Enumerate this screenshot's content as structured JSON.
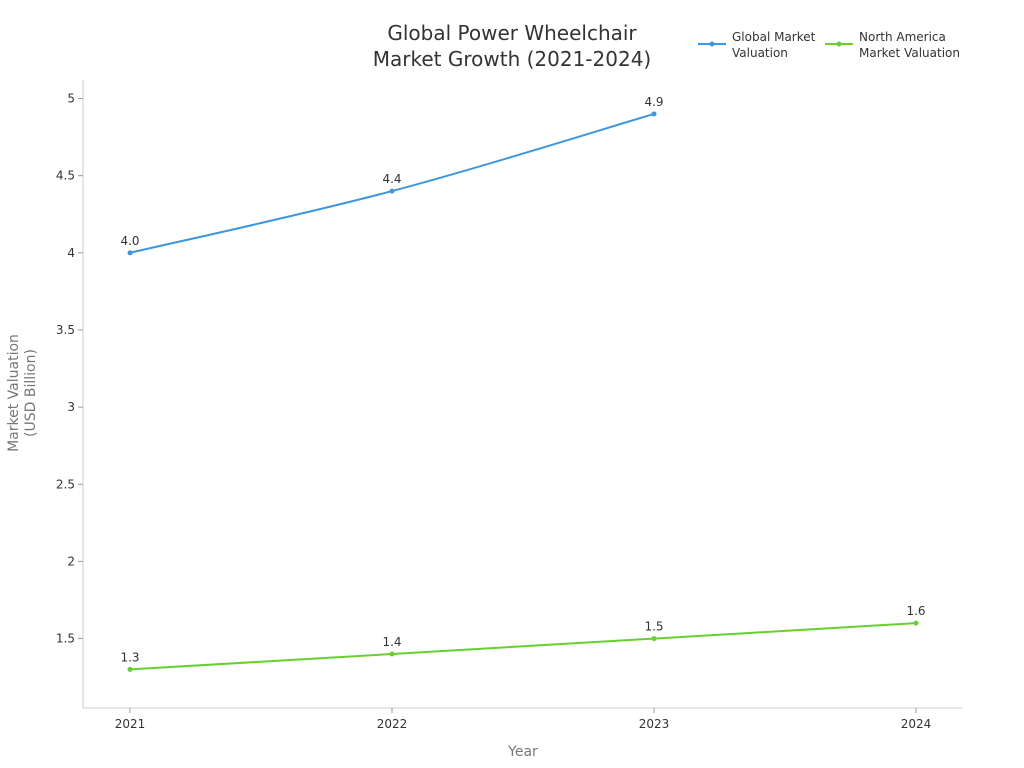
{
  "chart_data": {
    "type": "line",
    "title_lines": [
      "Global Power Wheelchair",
      "Market Growth (2021-2024)"
    ],
    "xlabel": "Year",
    "ylabel_lines": [
      "Market Valuation",
      "(USD Billion)"
    ],
    "x": [
      "2021",
      "2022",
      "2023",
      "2024"
    ],
    "ylim": [
      1.05,
      5.12
    ],
    "yticks": [
      1.5,
      2,
      2.5,
      3,
      3.5,
      4,
      4.5,
      5
    ],
    "ytick_labels": [
      "1.5",
      "2",
      "2.5",
      "3",
      "3.5",
      "4",
      "4.5",
      "5"
    ],
    "legend_position": "top-right",
    "series": [
      {
        "name_lines": [
          "Global Market",
          "Valuation"
        ],
        "color": "#3c97e0",
        "values": [
          4.0,
          4.4,
          4.9,
          null
        ],
        "labels": [
          "4.0",
          "4.4",
          "4.9",
          null
        ]
      },
      {
        "name_lines": [
          "North America",
          "Market Valuation"
        ],
        "color": "#66d12e",
        "values": [
          1.3,
          1.4,
          1.5,
          1.6
        ],
        "labels": [
          "1.3",
          "1.4",
          "1.5",
          "1.6"
        ]
      }
    ]
  }
}
